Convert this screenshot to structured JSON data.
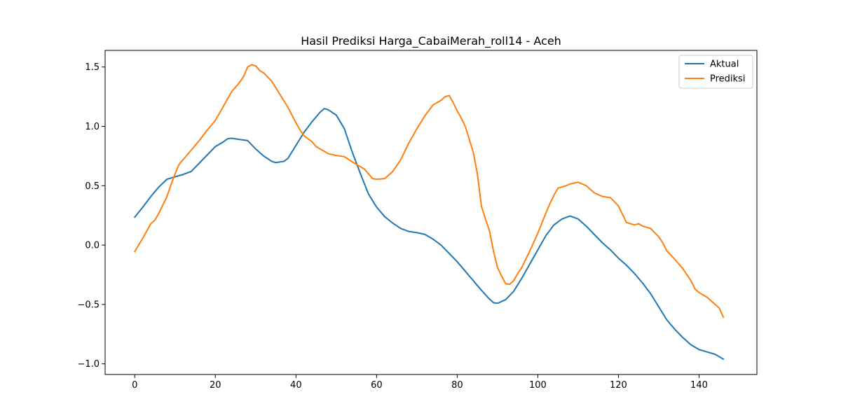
{
  "chart_data": {
    "type": "line",
    "title": "Hasil Prediksi Harga_CabaiMerah_roll14 - Aceh",
    "xlabel": "",
    "ylabel": "",
    "xlim": [
      -7.35,
      154.35
    ],
    "ylim": [
      -1.09,
      1.64
    ],
    "x_ticks": [
      0,
      20,
      40,
      60,
      80,
      100,
      120,
      140
    ],
    "y_ticks": [
      -1.0,
      -0.5,
      0.0,
      0.5,
      1.0,
      1.5
    ],
    "y_tick_labels": [
      "−1.0",
      "−0.5",
      "0.0",
      "0.5",
      "1.0",
      "1.5"
    ],
    "grid": false,
    "legend": "top-right",
    "x": {
      "start": 0,
      "end": 146,
      "step": 1
    },
    "series": [
      {
        "name": "Aktual",
        "color": "#1f77b4",
        "knots": [
          [
            0,
            0.235
          ],
          [
            2,
            0.32
          ],
          [
            4,
            0.41
          ],
          [
            6,
            0.49
          ],
          [
            8,
            0.555
          ],
          [
            10,
            0.575
          ],
          [
            11,
            0.585
          ],
          [
            12,
            0.595
          ],
          [
            14,
            0.62
          ],
          [
            16,
            0.69
          ],
          [
            18,
            0.76
          ],
          [
            20,
            0.83
          ],
          [
            22,
            0.87
          ],
          [
            23,
            0.895
          ],
          [
            24,
            0.9
          ],
          [
            26,
            0.89
          ],
          [
            28,
            0.88
          ],
          [
            30,
            0.81
          ],
          [
            32,
            0.75
          ],
          [
            34,
            0.705
          ],
          [
            35,
            0.695
          ],
          [
            36,
            0.7
          ],
          [
            37,
            0.705
          ],
          [
            38,
            0.73
          ],
          [
            40,
            0.84
          ],
          [
            42,
            0.95
          ],
          [
            44,
            1.04
          ],
          [
            46,
            1.12
          ],
          [
            47,
            1.15
          ],
          [
            48,
            1.14
          ],
          [
            50,
            1.095
          ],
          [
            52,
            0.98
          ],
          [
            54,
            0.78
          ],
          [
            56,
            0.6
          ],
          [
            58,
            0.43
          ],
          [
            60,
            0.32
          ],
          [
            62,
            0.24
          ],
          [
            64,
            0.185
          ],
          [
            66,
            0.14
          ],
          [
            68,
            0.115
          ],
          [
            70,
            0.105
          ],
          [
            72,
            0.09
          ],
          [
            74,
            0.05
          ],
          [
            76,
            0.0
          ],
          [
            78,
            -0.07
          ],
          [
            80,
            -0.14
          ],
          [
            82,
            -0.22
          ],
          [
            84,
            -0.3
          ],
          [
            86,
            -0.38
          ],
          [
            88,
            -0.455
          ],
          [
            89,
            -0.485
          ],
          [
            90,
            -0.49
          ],
          [
            92,
            -0.46
          ],
          [
            94,
            -0.39
          ],
          [
            96,
            -0.28
          ],
          [
            98,
            -0.16
          ],
          [
            100,
            -0.04
          ],
          [
            102,
            0.08
          ],
          [
            104,
            0.17
          ],
          [
            106,
            0.22
          ],
          [
            108,
            0.245
          ],
          [
            110,
            0.22
          ],
          [
            112,
            0.16
          ],
          [
            114,
            0.09
          ],
          [
            116,
            0.02
          ],
          [
            118,
            -0.04
          ],
          [
            120,
            -0.11
          ],
          [
            122,
            -0.17
          ],
          [
            124,
            -0.24
          ],
          [
            126,
            -0.32
          ],
          [
            128,
            -0.41
          ],
          [
            130,
            -0.52
          ],
          [
            132,
            -0.63
          ],
          [
            134,
            -0.71
          ],
          [
            136,
            -0.78
          ],
          [
            138,
            -0.84
          ],
          [
            140,
            -0.88
          ],
          [
            142,
            -0.9
          ],
          [
            144,
            -0.92
          ],
          [
            146,
            -0.96
          ]
        ]
      },
      {
        "name": "Prediksi",
        "color": "#ff7f0e",
        "knots": [
          [
            0,
            -0.055
          ],
          [
            2,
            0.06
          ],
          [
            3,
            0.12
          ],
          [
            4,
            0.18
          ],
          [
            5,
            0.21
          ],
          [
            6,
            0.27
          ],
          [
            8,
            0.41
          ],
          [
            9,
            0.51
          ],
          [
            10,
            0.6
          ],
          [
            11,
            0.68
          ],
          [
            12,
            0.72
          ],
          [
            14,
            0.8
          ],
          [
            16,
            0.88
          ],
          [
            18,
            0.97
          ],
          [
            19,
            1.01
          ],
          [
            20,
            1.05
          ],
          [
            22,
            1.17
          ],
          [
            24,
            1.29
          ],
          [
            26,
            1.37
          ],
          [
            27,
            1.42
          ],
          [
            28,
            1.5
          ],
          [
            29,
            1.52
          ],
          [
            30,
            1.51
          ],
          [
            31,
            1.47
          ],
          [
            32,
            1.45
          ],
          [
            34,
            1.38
          ],
          [
            36,
            1.27
          ],
          [
            38,
            1.16
          ],
          [
            40,
            1.03
          ],
          [
            41,
            0.97
          ],
          [
            42,
            0.92
          ],
          [
            44,
            0.87
          ],
          [
            45,
            0.83
          ],
          [
            46,
            0.81
          ],
          [
            48,
            0.77
          ],
          [
            50,
            0.755
          ],
          [
            52,
            0.745
          ],
          [
            54,
            0.7
          ],
          [
            56,
            0.66
          ],
          [
            57,
            0.64
          ],
          [
            58,
            0.6
          ],
          [
            59,
            0.56
          ],
          [
            60,
            0.555
          ],
          [
            62,
            0.56
          ],
          [
            64,
            0.62
          ],
          [
            66,
            0.72
          ],
          [
            68,
            0.86
          ],
          [
            70,
            0.98
          ],
          [
            72,
            1.09
          ],
          [
            74,
            1.18
          ],
          [
            76,
            1.22
          ],
          [
            77,
            1.25
          ],
          [
            78,
            1.26
          ],
          [
            79,
            1.2
          ],
          [
            80,
            1.13
          ],
          [
            81,
            1.07
          ],
          [
            82,
            1.0
          ],
          [
            84,
            0.78
          ],
          [
            85,
            0.6
          ],
          [
            86,
            0.33
          ],
          [
            87,
            0.22
          ],
          [
            88,
            0.12
          ],
          [
            89,
            -0.05
          ],
          [
            90,
            -0.19
          ],
          [
            91,
            -0.26
          ],
          [
            92,
            -0.325
          ],
          [
            93,
            -0.33
          ],
          [
            94,
            -0.3
          ],
          [
            95,
            -0.24
          ],
          [
            96,
            -0.19
          ],
          [
            98,
            -0.05
          ],
          [
            100,
            0.1
          ],
          [
            102,
            0.27
          ],
          [
            103,
            0.35
          ],
          [
            104,
            0.42
          ],
          [
            105,
            0.48
          ],
          [
            106,
            0.49
          ],
          [
            107,
            0.5
          ],
          [
            108,
            0.515
          ],
          [
            110,
            0.53
          ],
          [
            112,
            0.5
          ],
          [
            113,
            0.47
          ],
          [
            114,
            0.44
          ],
          [
            116,
            0.41
          ],
          [
            118,
            0.4
          ],
          [
            120,
            0.33
          ],
          [
            122,
            0.19
          ],
          [
            123,
            0.18
          ],
          [
            124,
            0.17
          ],
          [
            125,
            0.18
          ],
          [
            126,
            0.16
          ],
          [
            128,
            0.14
          ],
          [
            130,
            0.07
          ],
          [
            131,
            0.02
          ],
          [
            132,
            -0.05
          ],
          [
            134,
            -0.12
          ],
          [
            136,
            -0.2
          ],
          [
            138,
            -0.3
          ],
          [
            139,
            -0.37
          ],
          [
            140,
            -0.4
          ],
          [
            142,
            -0.44
          ],
          [
            143,
            -0.47
          ],
          [
            144,
            -0.5
          ],
          [
            145,
            -0.53
          ],
          [
            146,
            -0.605
          ]
        ]
      }
    ]
  }
}
